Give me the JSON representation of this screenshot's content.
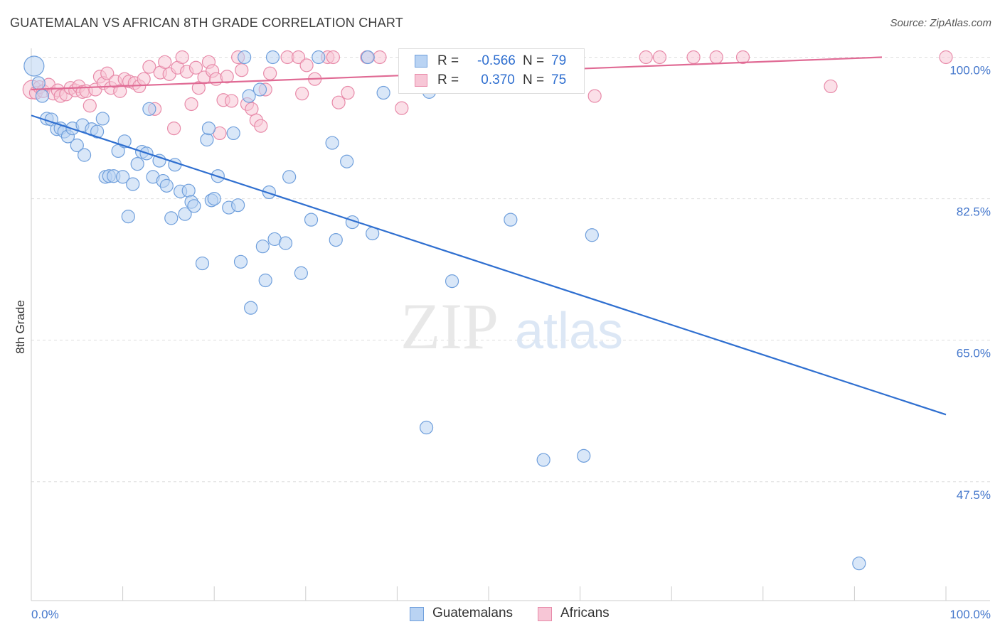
{
  "title": "GUATEMALAN VS AFRICAN 8TH GRADE CORRELATION CHART",
  "source": "Source: ZipAtlas.com",
  "watermark": {
    "zip": "ZIP",
    "atlas": "atlas"
  },
  "legend": {
    "rows": [
      {
        "r_label": "R =",
        "r_value": "-0.566",
        "n_label": "N =",
        "n_value": "79"
      },
      {
        "r_label": "R =",
        "r_value": " 0.370",
        "n_label": "N =",
        "n_value": "75"
      }
    ]
  },
  "bottom_legend": {
    "series1": "Guatemalans",
    "series2": "Africans"
  },
  "colors": {
    "blue_fill": "#b9d3f3",
    "blue_stroke": "#6f9fdc",
    "blue_line": "#2f6fd0",
    "pink_fill": "#f7c6d6",
    "pink_stroke": "#e88aa9",
    "pink_line": "#e06a94",
    "tick_label": "#4477cc",
    "grid": "#dddddd"
  },
  "chart_data": {
    "type": "scatter",
    "title": "GUATEMALAN VS AFRICAN 8TH GRADE CORRELATION CHART",
    "xlabel": "",
    "ylabel": "8th Grade",
    "x_tick_labels": [
      "0.0%",
      "100.0%"
    ],
    "y_tick_labels": [
      "100.0%",
      "82.5%",
      "65.0%",
      "47.5%"
    ],
    "y_ticks": [
      100.0,
      82.5,
      65.0,
      47.5
    ],
    "xlim": [
      0,
      100
    ],
    "ylim": [
      32.8,
      101.8
    ],
    "grid": true,
    "legend_position": "top-center",
    "series": [
      {
        "name": "Guatemalans",
        "color": "#6f9fdc",
        "r": -0.566,
        "n": 79,
        "trend": {
          "x": [
            0,
            100
          ],
          "y": [
            92.8,
            55.8
          ]
        },
        "points": [
          [
            0.3,
            98.9
          ],
          [
            0.8,
            96.8
          ],
          [
            1.2,
            95.2
          ],
          [
            1.7,
            92.4
          ],
          [
            2.2,
            92.3
          ],
          [
            2.8,
            91.1
          ],
          [
            3.2,
            91.2
          ],
          [
            3.6,
            90.8
          ],
          [
            4.0,
            90.2
          ],
          [
            4.5,
            91.2
          ],
          [
            5.0,
            89.1
          ],
          [
            5.6,
            91.6
          ],
          [
            5.8,
            87.9
          ],
          [
            6.6,
            91.1
          ],
          [
            7.2,
            90.8
          ],
          [
            7.8,
            92.4
          ],
          [
            8.1,
            85.2
          ],
          [
            8.5,
            85.3
          ],
          [
            9.0,
            85.3
          ],
          [
            9.5,
            88.4
          ],
          [
            10.0,
            85.2
          ],
          [
            10.2,
            89.6
          ],
          [
            10.6,
            80.3
          ],
          [
            11.1,
            84.3
          ],
          [
            11.6,
            86.8
          ],
          [
            12.1,
            88.3
          ],
          [
            12.6,
            88.1
          ],
          [
            12.9,
            93.6
          ],
          [
            13.3,
            85.2
          ],
          [
            14.0,
            87.2
          ],
          [
            14.4,
            84.7
          ],
          [
            14.8,
            84.1
          ],
          [
            15.3,
            80.1
          ],
          [
            15.7,
            86.7
          ],
          [
            16.3,
            83.4
          ],
          [
            16.8,
            80.6
          ],
          [
            17.2,
            83.5
          ],
          [
            17.5,
            82.1
          ],
          [
            17.8,
            81.6
          ],
          [
            18.7,
            74.5
          ],
          [
            19.2,
            89.8
          ],
          [
            19.4,
            91.2
          ],
          [
            19.7,
            82.3
          ],
          [
            20.0,
            82.5
          ],
          [
            20.4,
            85.3
          ],
          [
            21.6,
            81.4
          ],
          [
            22.1,
            90.6
          ],
          [
            22.6,
            81.7
          ],
          [
            22.9,
            74.7
          ],
          [
            23.3,
            100.0
          ],
          [
            23.8,
            95.2
          ],
          [
            24.0,
            69.0
          ],
          [
            25.0,
            96.0
          ],
          [
            25.3,
            76.6
          ],
          [
            25.6,
            72.4
          ],
          [
            26.0,
            83.3
          ],
          [
            26.4,
            100.0
          ],
          [
            26.6,
            77.5
          ],
          [
            27.8,
            77.0
          ],
          [
            28.2,
            85.2
          ],
          [
            29.5,
            73.3
          ],
          [
            30.6,
            79.9
          ],
          [
            31.4,
            100.0
          ],
          [
            32.9,
            89.4
          ],
          [
            33.3,
            77.4
          ],
          [
            34.5,
            87.1
          ],
          [
            35.1,
            79.6
          ],
          [
            36.8,
            100.0
          ],
          [
            37.3,
            78.2
          ],
          [
            38.5,
            95.6
          ],
          [
            43.5,
            95.7
          ],
          [
            43.2,
            54.2
          ],
          [
            46.0,
            72.3
          ],
          [
            56.0,
            50.2
          ],
          [
            52.0,
            100.0
          ],
          [
            52.4,
            79.9
          ],
          [
            60.4,
            50.7
          ],
          [
            61.3,
            78.0
          ],
          [
            90.5,
            37.4
          ]
        ]
      },
      {
        "name": "Africans",
        "color": "#e88aa9",
        "r": 0.37,
        "n": 75,
        "trend": {
          "x": [
            0,
            93
          ],
          "y": [
            96.0,
            100.0
          ]
        },
        "points": [
          [
            0.1,
            96.0
          ],
          [
            0.5,
            95.6
          ],
          [
            0.9,
            96.3
          ],
          [
            1.3,
            95.8
          ],
          [
            1.9,
            96.6
          ],
          [
            2.4,
            95.5
          ],
          [
            2.9,
            95.9
          ],
          [
            3.2,
            95.2
          ],
          [
            3.8,
            95.4
          ],
          [
            4.3,
            96.2
          ],
          [
            4.8,
            95.9
          ],
          [
            5.2,
            96.4
          ],
          [
            5.6,
            95.7
          ],
          [
            6.0,
            95.8
          ],
          [
            6.4,
            94.0
          ],
          [
            7.0,
            96.0
          ],
          [
            7.5,
            97.6
          ],
          [
            7.9,
            96.8
          ],
          [
            8.3,
            98.0
          ],
          [
            8.7,
            96.2
          ],
          [
            9.2,
            97.0
          ],
          [
            9.7,
            95.8
          ],
          [
            10.2,
            97.3
          ],
          [
            10.7,
            97.0
          ],
          [
            11.3,
            96.8
          ],
          [
            11.8,
            96.4
          ],
          [
            12.3,
            97.3
          ],
          [
            12.9,
            98.8
          ],
          [
            13.5,
            93.6
          ],
          [
            14.1,
            98.1
          ],
          [
            14.6,
            99.4
          ],
          [
            15.1,
            97.9
          ],
          [
            15.6,
            91.2
          ],
          [
            16.0,
            98.7
          ],
          [
            16.5,
            100.0
          ],
          [
            17.0,
            98.2
          ],
          [
            17.5,
            94.2
          ],
          [
            18.0,
            98.7
          ],
          [
            18.3,
            96.2
          ],
          [
            18.9,
            97.5
          ],
          [
            19.4,
            99.4
          ],
          [
            19.8,
            98.3
          ],
          [
            20.2,
            97.3
          ],
          [
            20.6,
            90.6
          ],
          [
            21.0,
            94.7
          ],
          [
            21.4,
            97.6
          ],
          [
            21.9,
            94.6
          ],
          [
            22.6,
            100.0
          ],
          [
            23.0,
            98.4
          ],
          [
            23.6,
            94.2
          ],
          [
            24.1,
            93.6
          ],
          [
            24.6,
            92.2
          ],
          [
            25.1,
            91.5
          ],
          [
            25.6,
            96.0
          ],
          [
            26.1,
            98.0
          ],
          [
            28.0,
            100.0
          ],
          [
            29.2,
            100.0
          ],
          [
            29.6,
            95.5
          ],
          [
            30.1,
            99.0
          ],
          [
            31.0,
            97.3
          ],
          [
            32.4,
            100.0
          ],
          [
            33.0,
            100.0
          ],
          [
            33.6,
            94.4
          ],
          [
            34.6,
            95.6
          ],
          [
            36.7,
            100.0
          ],
          [
            38.1,
            100.0
          ],
          [
            40.5,
            93.7
          ],
          [
            61.6,
            95.2
          ],
          [
            67.2,
            100.0
          ],
          [
            68.7,
            100.0
          ],
          [
            72.4,
            100.0
          ],
          [
            74.9,
            100.0
          ],
          [
            77.8,
            100.0
          ],
          [
            87.4,
            96.4
          ],
          [
            100.0,
            100.0
          ]
        ]
      }
    ]
  }
}
